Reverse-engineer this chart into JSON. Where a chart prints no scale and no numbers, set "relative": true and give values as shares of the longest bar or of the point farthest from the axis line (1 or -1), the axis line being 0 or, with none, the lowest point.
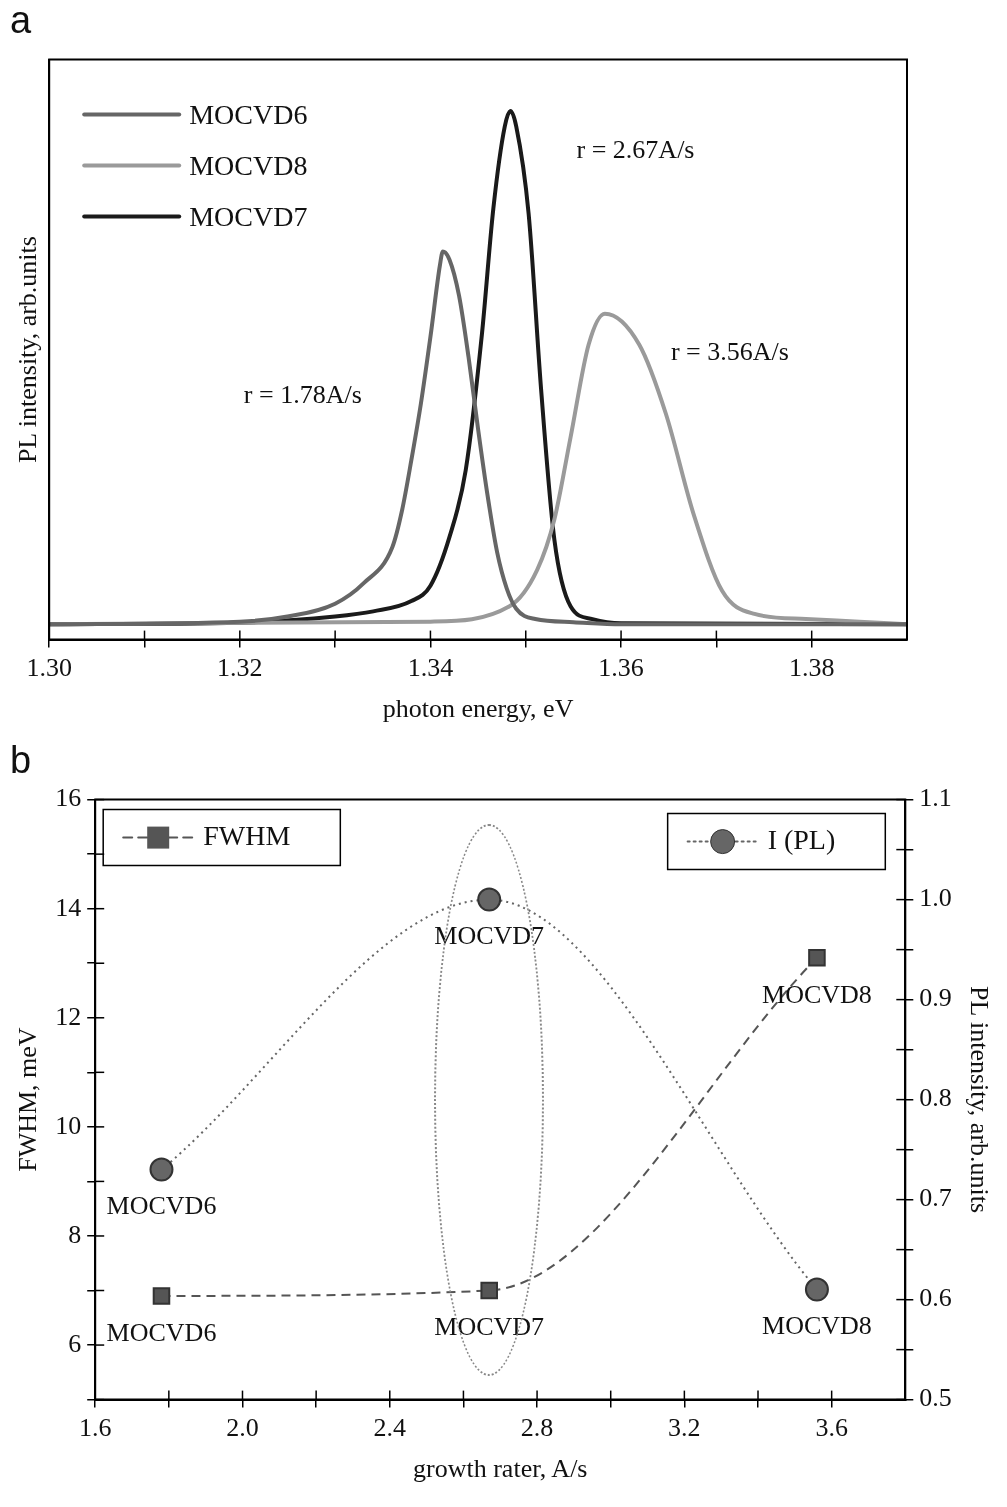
{
  "chart_data": [
    {
      "type": "line",
      "title": "a",
      "xlabel": "photon energy, eV",
      "ylabel": "PL intensity, arb.units",
      "relative": true,
      "xlim": [
        1.3,
        1.39
      ],
      "xticks": [
        {
          "value": 1.3,
          "label": "1.30"
        },
        {
          "value": 1.31,
          "label": null
        },
        {
          "value": 1.32,
          "label": "1.32"
        },
        {
          "value": 1.33,
          "label": null
        },
        {
          "value": 1.34,
          "label": "1.34"
        },
        {
          "value": 1.35,
          "label": null
        },
        {
          "value": 1.36,
          "label": "1.36"
        },
        {
          "value": 1.37,
          "label": null
        },
        {
          "value": 1.38,
          "label": "1.38"
        }
      ],
      "legend": "top left",
      "marker": "none",
      "line_style": "solid",
      "series": [
        {
          "name": "MOCVD6",
          "color": "#666666",
          "x": [
            1.3,
            1.32,
            1.325,
            1.33,
            1.333,
            1.336,
            1.337,
            1.338,
            1.339,
            1.34,
            1.341,
            1.3413,
            1.342,
            1.343,
            1.344,
            1.345,
            1.346,
            1.347,
            1.348,
            1.349,
            1.351,
            1.355,
            1.36,
            1.39
          ],
          "values": [
            0,
            0.005,
            0.015,
            0.04,
            0.08,
            0.15,
            0.22,
            0.32,
            0.43,
            0.56,
            0.7,
            0.726,
            0.71,
            0.64,
            0.52,
            0.38,
            0.25,
            0.14,
            0.07,
            0.03,
            0.01,
            0.004,
            0,
            0
          ]
        },
        {
          "name": "MOCVD8",
          "color": "#9a9a9a",
          "x": [
            1.3,
            1.34,
            1.3483,
            1.3512,
            1.353,
            1.3547,
            1.3566,
            1.3583,
            1.3619,
            1.3647,
            1.3676,
            1.3706,
            1.374,
            1.3794,
            1.385,
            1.39
          ],
          "values": [
            0,
            0.005,
            0.035,
            0.106,
            0.204,
            0.364,
            0.545,
            0.605,
            0.545,
            0.41,
            0.215,
            0.065,
            0.02,
            0.01,
            0.005,
            0
          ]
        },
        {
          "name": "MOCVD7",
          "color": "#1a1a1a",
          "x": [
            1.3,
            1.32,
            1.33,
            1.334,
            1.338,
            1.34,
            1.342,
            1.3437,
            1.3454,
            1.3466,
            1.3478,
            1.3484,
            1.349,
            1.3503,
            1.3516,
            1.353,
            1.3547,
            1.357,
            1.36,
            1.39
          ],
          "values": [
            0,
            0.003,
            0.015,
            0.025,
            0.045,
            0.075,
            0.17,
            0.3,
            0.565,
            0.81,
            0.97,
            1.0,
            0.97,
            0.8,
            0.46,
            0.165,
            0.035,
            0.01,
            0.002,
            0
          ]
        }
      ],
      "annotations": [
        "r = 1.78A/s",
        "r = 2.67A/s",
        "r = 3.56A/s"
      ]
    },
    {
      "type": "line",
      "title": "b",
      "xlabel": "growth rater, A/s",
      "ylabel": "FWHM, meV",
      "y2label": "PL intensity, arb.units",
      "x": [
        1.78,
        2.67,
        3.56
      ],
      "xlim": [
        1.6,
        3.8
      ],
      "xticks": [
        {
          "value": 1.6,
          "label": "1.6"
        },
        {
          "value": 1.8,
          "label": null
        },
        {
          "value": 2.0,
          "label": "2.0"
        },
        {
          "value": 2.2,
          "label": null
        },
        {
          "value": 2.4,
          "label": "2.4"
        },
        {
          "value": 2.6,
          "label": null
        },
        {
          "value": 2.8,
          "label": "2.8"
        },
        {
          "value": 3.0,
          "label": null
        },
        {
          "value": 3.2,
          "label": "3.2"
        },
        {
          "value": 3.4,
          "label": null
        },
        {
          "value": 3.6,
          "label": "3.6"
        }
      ],
      "ylim": [
        5,
        16
      ],
      "yticks": [
        {
          "value": 5,
          "label": null
        },
        6,
        {
          "value": 7,
          "label": null
        },
        8,
        {
          "value": 9,
          "label": null
        },
        10,
        {
          "value": 11,
          "label": null
        },
        12,
        {
          "value": 13,
          "label": null
        },
        14,
        {
          "value": 15,
          "label": null
        },
        16
      ],
      "y2lim": [
        0.5,
        1.1
      ],
      "y2ticks": [
        {
          "value": 0.5,
          "label": "0.5"
        },
        {
          "value": 0.55,
          "label": null
        },
        {
          "value": 0.6,
          "label": "0.6"
        },
        {
          "value": 0.65,
          "label": null
        },
        {
          "value": 0.7,
          "label": "0.7"
        },
        {
          "value": 0.75,
          "label": null
        },
        {
          "value": 0.8,
          "label": "0.8"
        },
        {
          "value": 0.85,
          "label": null
        },
        {
          "value": 0.9,
          "label": "0.9"
        },
        {
          "value": 0.95,
          "label": null
        },
        {
          "value": 1.0,
          "label": "1.0"
        },
        {
          "value": 1.05,
          "label": null
        },
        {
          "value": 1.1,
          "label": "1.1"
        }
      ],
      "legend": "top",
      "series": [
        {
          "name": "FWHM",
          "color": "#555555",
          "marker": "square",
          "line_style": "dashed",
          "values": [
            6.9,
            7.0,
            13.1
          ],
          "value_labels": [
            "MOCVD6",
            "MOCVD7",
            "MOCVD8"
          ]
        },
        {
          "name": "I (PL)",
          "color": "#666666",
          "marker": "circle",
          "line_style": "dotted",
          "axis": "y2",
          "values": [
            0.73,
            1.0,
            0.61
          ],
          "value_labels": [
            "MOCVD6",
            "MOCVD7",
            "MOCVD8"
          ]
        }
      ]
    }
  ]
}
